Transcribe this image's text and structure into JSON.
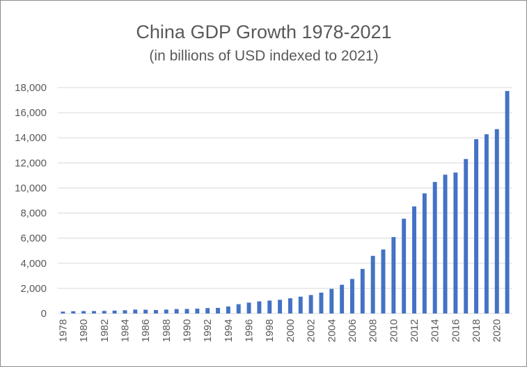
{
  "chart_data": {
    "type": "bar",
    "title": "China GDP Growth 1978-2021",
    "subtitle": "(in billions of USD indexed to 2021)",
    "xlabel": "",
    "ylabel": "",
    "ylim": [
      0,
      18000
    ],
    "yticks": [
      0,
      2000,
      4000,
      6000,
      8000,
      10000,
      12000,
      14000,
      16000,
      18000
    ],
    "ytick_labels": [
      "0",
      "2,000",
      "4,000",
      "6,000",
      "8,000",
      "10,000",
      "12,000",
      "14,000",
      "16,000",
      "18,000"
    ],
    "grid": true,
    "bar_color": "#4472c4",
    "grid_color": "#d9d9d9",
    "categories": [
      "1978",
      "1979",
      "1980",
      "1981",
      "1982",
      "1983",
      "1984",
      "1985",
      "1986",
      "1987",
      "1988",
      "1989",
      "1990",
      "1991",
      "1992",
      "1993",
      "1994",
      "1995",
      "1996",
      "1997",
      "1998",
      "1999",
      "2000",
      "2001",
      "2002",
      "2003",
      "2004",
      "2005",
      "2006",
      "2007",
      "2008",
      "2009",
      "2010",
      "2011",
      "2012",
      "2013",
      "2014",
      "2015",
      "2016",
      "2017",
      "2018",
      "2019",
      "2020",
      "2021"
    ],
    "xtick_labels": [
      "1978",
      "",
      "1980",
      "",
      "1982",
      "",
      "1984",
      "",
      "1986",
      "",
      "1988",
      "",
      "1990",
      "",
      "1992",
      "",
      "1994",
      "",
      "1996",
      "",
      "1998",
      "",
      "2000",
      "",
      "2002",
      "",
      "2004",
      "",
      "2006",
      "",
      "2008",
      "",
      "2010",
      "",
      "2012",
      "",
      "2014",
      "",
      "2016",
      "",
      "2018",
      "",
      "2020",
      ""
    ],
    "values": [
      150,
      180,
      190,
      195,
      205,
      230,
      260,
      310,
      300,
      275,
      310,
      350,
      360,
      385,
      430,
      445,
      560,
      740,
      865,
      965,
      1030,
      1090,
      1210,
      1340,
      1470,
      1660,
      1960,
      2290,
      2750,
      3550,
      4590,
      5100,
      6090,
      7550,
      8530,
      9570,
      10480,
      11060,
      11230,
      12310,
      13890,
      14280,
      14690,
      17730
    ]
  }
}
